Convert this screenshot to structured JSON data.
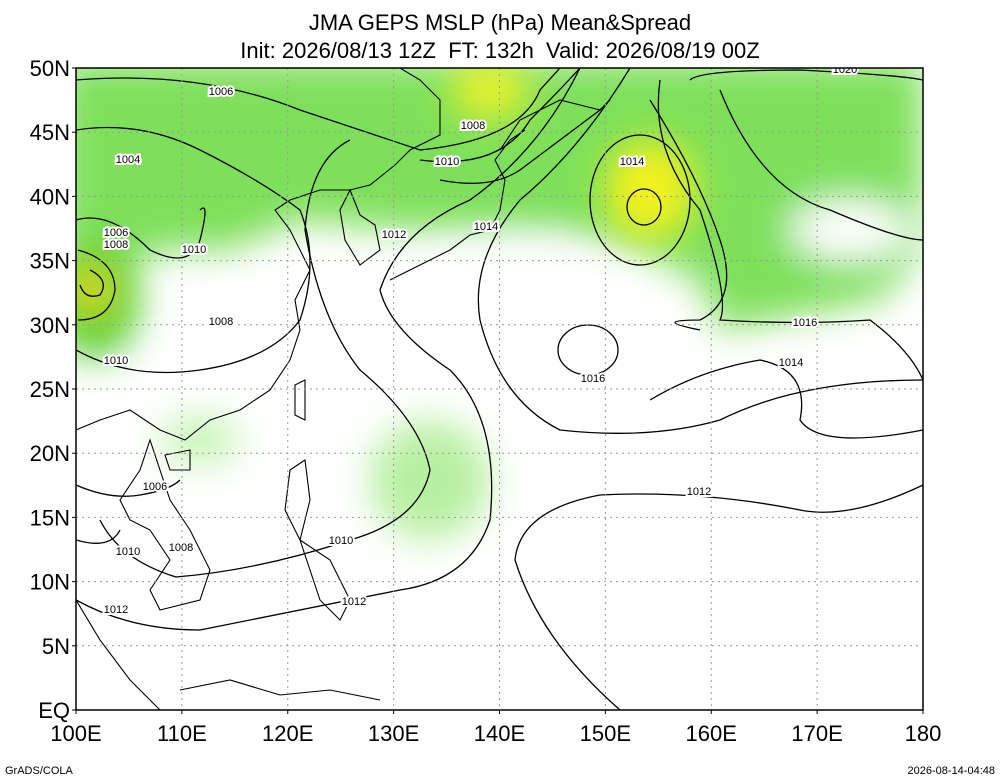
{
  "title": {
    "line1": "JMA GEPS MSLP (hPa) Mean&Spread",
    "line2": "Init: 2026/08/13 12Z  FT: 132h  Valid: 2026/08/19 00Z"
  },
  "axes": {
    "lat_labels": [
      "50N",
      "45N",
      "40N",
      "35N",
      "30N",
      "25N",
      "20N",
      "15N",
      "10N",
      "5N",
      "EQ"
    ],
    "lon_labels": [
      "100E",
      "110E",
      "120E",
      "130E",
      "140E",
      "150E",
      "160E",
      "170E",
      "180"
    ]
  },
  "contour_labels": [
    "1006",
    "1008",
    "1004",
    "1010",
    "1014",
    "1014",
    "1012",
    "1006",
    "1008",
    "1010",
    "1008",
    "1016",
    "1010",
    "1016",
    "1014",
    "1012",
    "1006",
    "1010",
    "1008",
    "1010",
    "1012",
    "1012",
    "1020"
  ],
  "footer": {
    "left": "GrADS/COLA",
    "right": "2026-08-14-04:48"
  }
}
